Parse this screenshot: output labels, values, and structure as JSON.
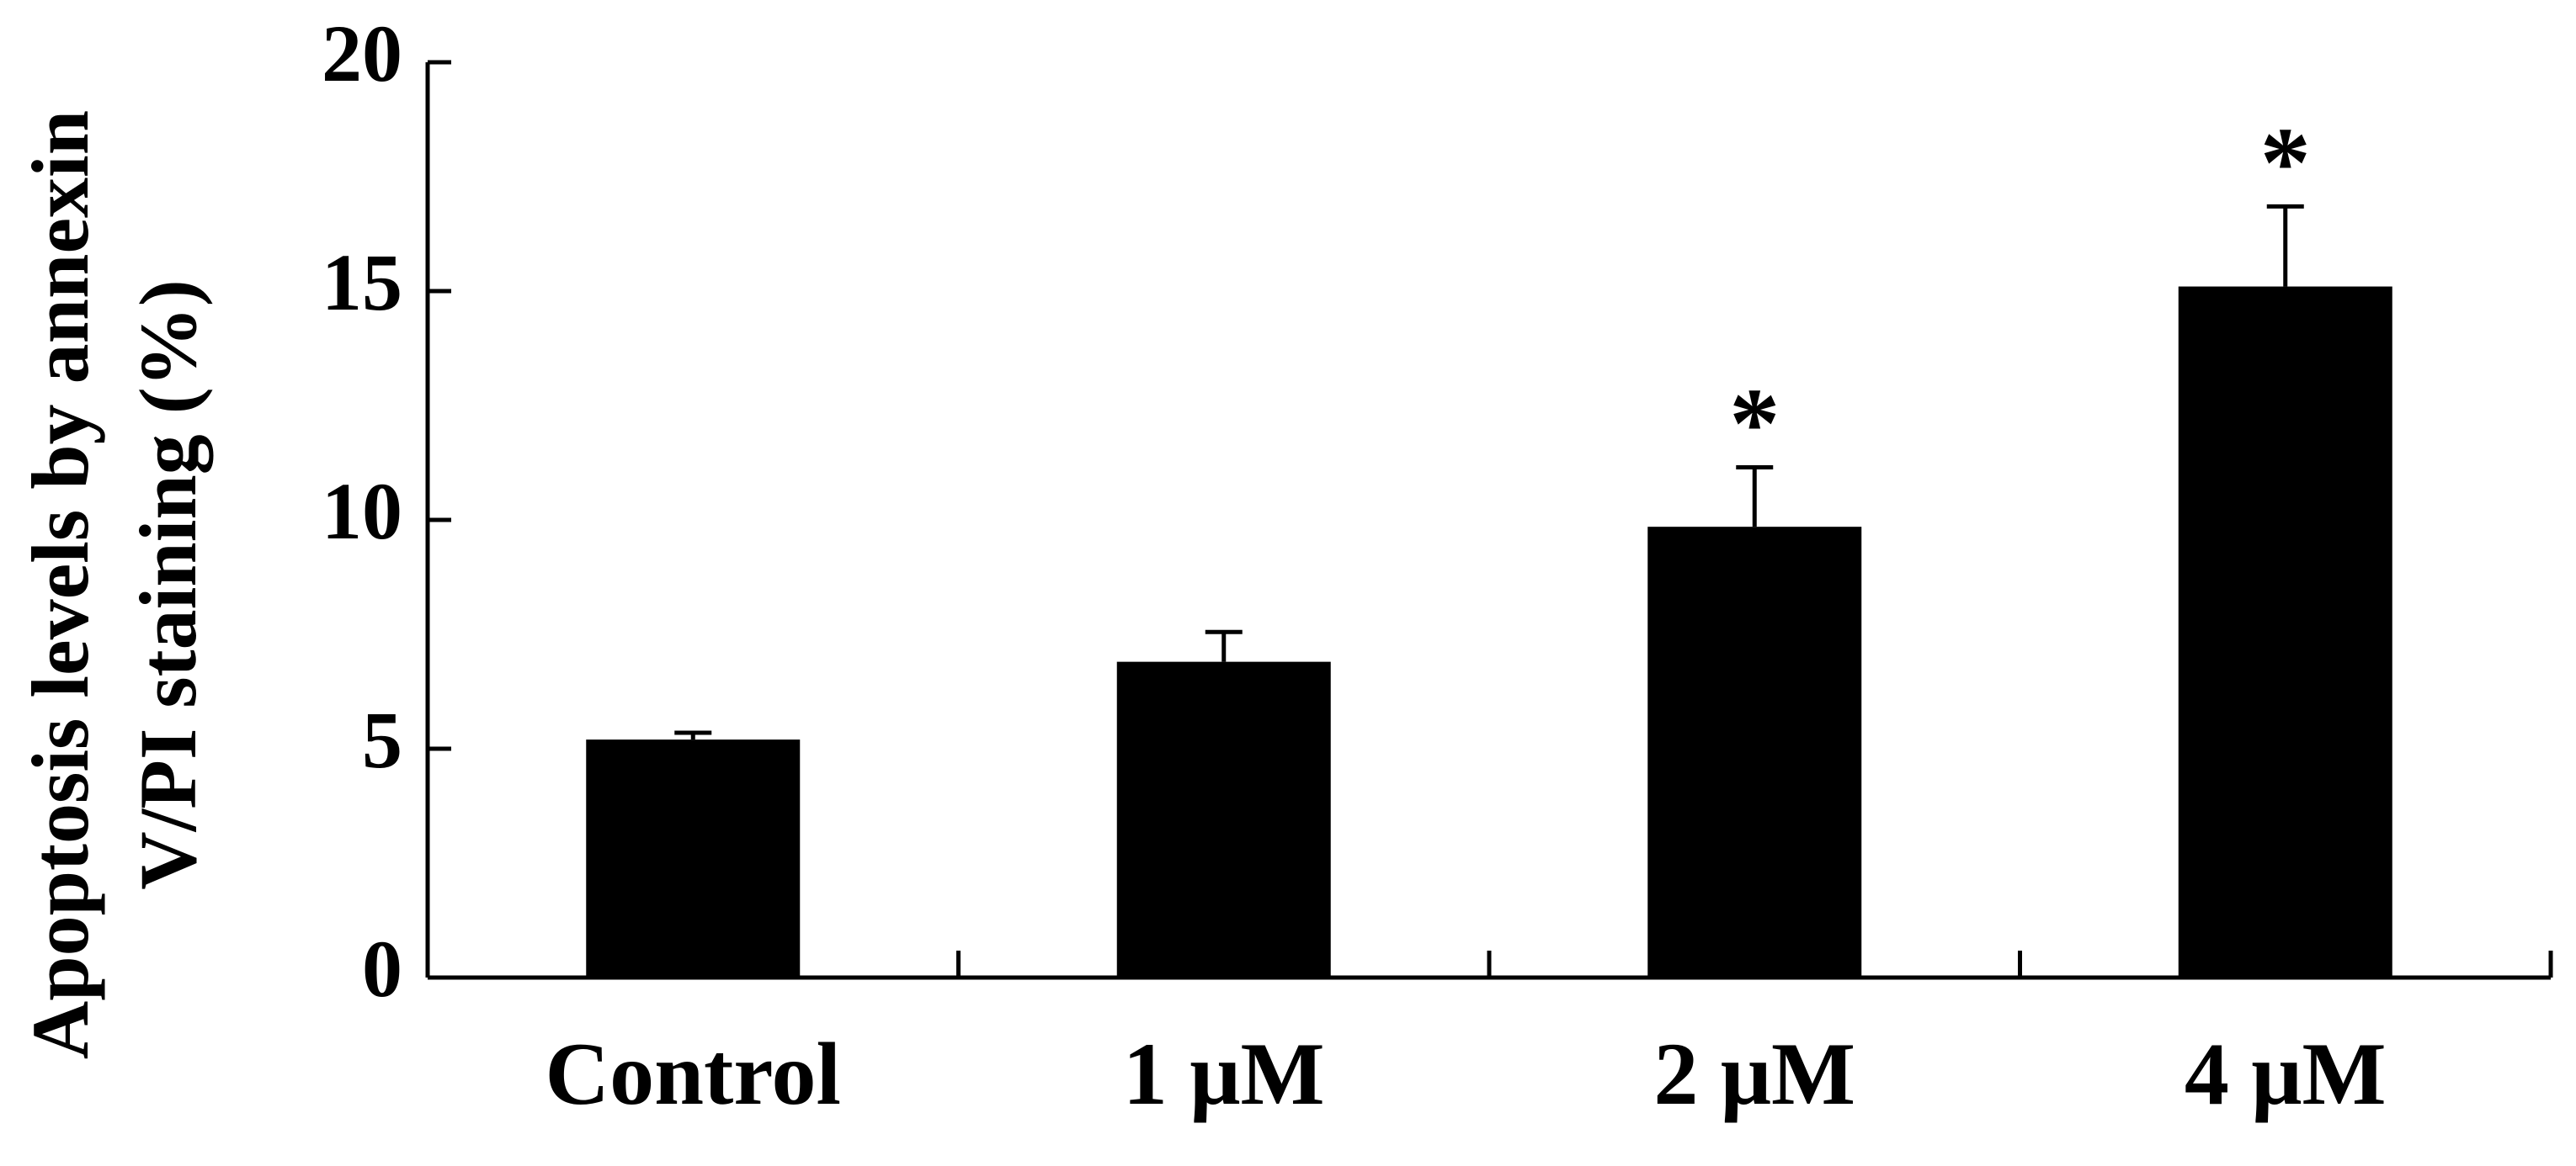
{
  "chart_data": {
    "type": "bar",
    "title": "",
    "xlabel": "",
    "ylabel_lines": [
      "Apoptosis levels by annexin",
      "V/PI staining (%)"
    ],
    "categories": [
      "Control",
      "1 μM",
      "2 μM",
      "4 μM"
    ],
    "values": [
      5.2,
      6.9,
      9.85,
      15.1
    ],
    "errors": [
      0.15,
      0.65,
      1.3,
      1.75
    ],
    "significance": [
      "",
      "",
      "*",
      "*"
    ],
    "ylim": [
      0,
      20
    ],
    "yticks": [
      0,
      5,
      10,
      15,
      20
    ],
    "ytick_labels": [
      "0",
      "5",
      "10",
      "15",
      "20"
    ],
    "grid": false,
    "legend": "none",
    "bar_color": "#000000"
  }
}
